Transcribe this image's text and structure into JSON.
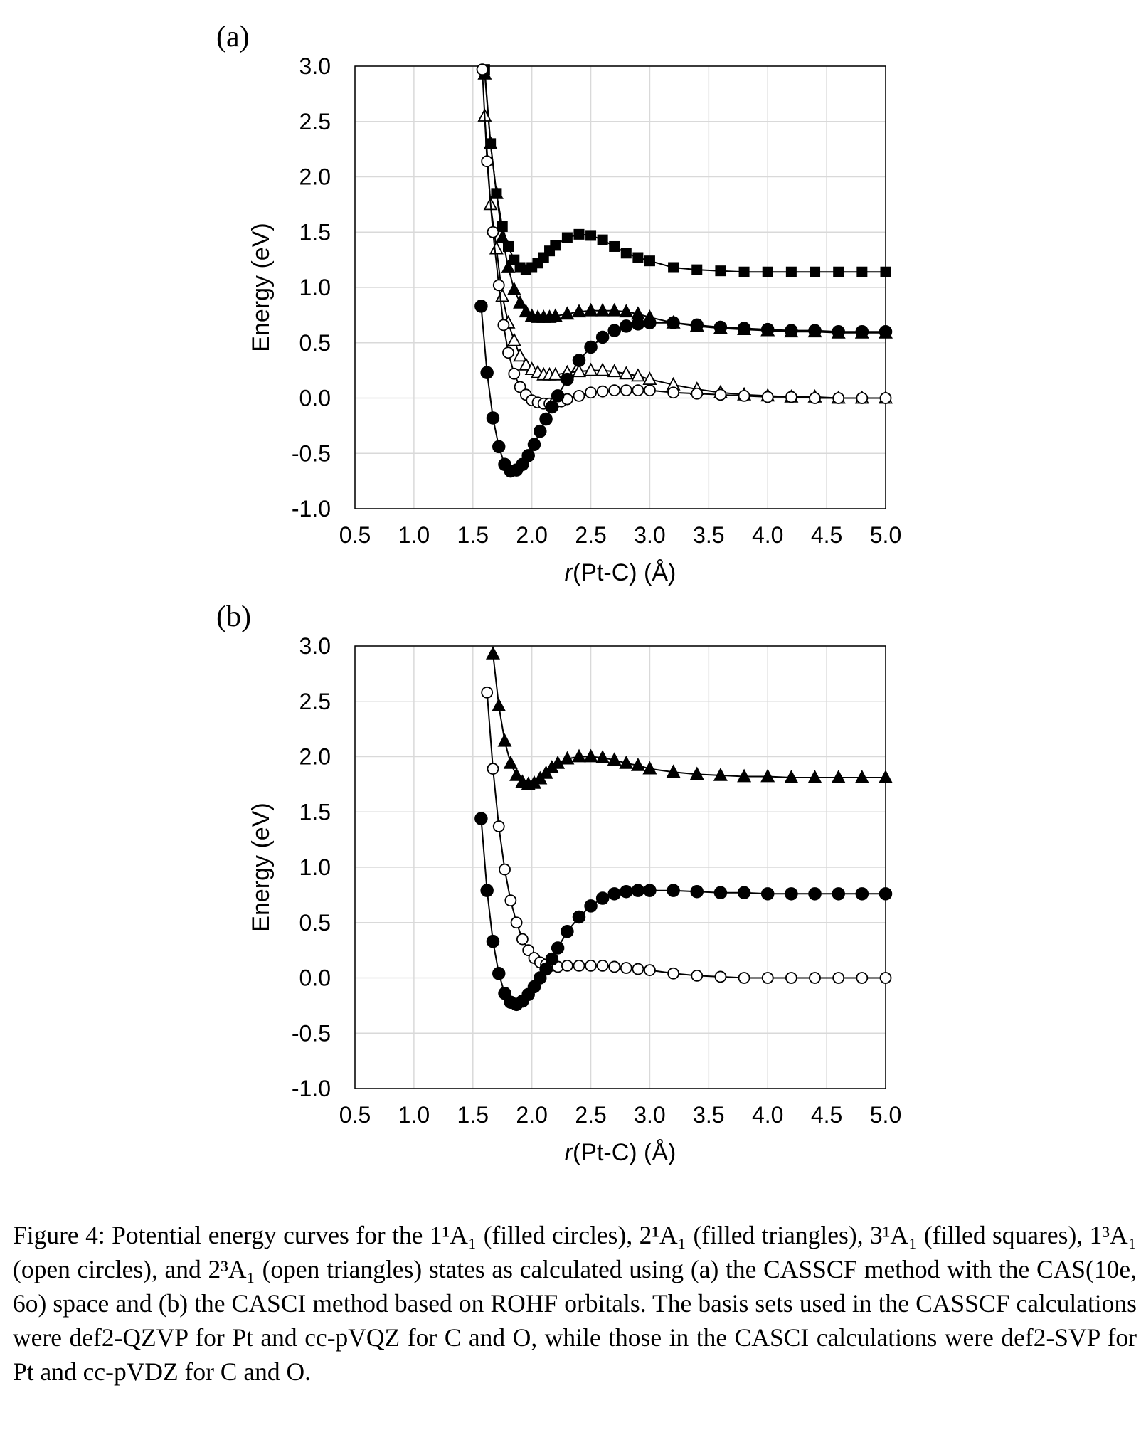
{
  "chart_data": [
    {
      "panel_label": "(a)",
      "type": "scatter",
      "xlabel_prefix": "r",
      "xlabel_rest": "(Pt-C) (Å)",
      "ylabel": "Energy (eV)",
      "xlim": [
        0.5,
        5.0
      ],
      "ylim": [
        -1.0,
        3.0
      ],
      "xticks": [
        "0.5",
        "1.0",
        "1.5",
        "2.0",
        "2.5",
        "3.0",
        "3.5",
        "4.0",
        "4.5",
        "5.0"
      ],
      "yticks": [
        "3.0",
        "2.5",
        "2.0",
        "1.5",
        "1.0",
        "0.5",
        "0.0",
        "-0.5",
        "-1.0"
      ],
      "grid": true,
      "series": [
        {
          "marker": "filled-square",
          "x": [
            1.6,
            1.65,
            1.7,
            1.75,
            1.8,
            1.85,
            1.9,
            1.95,
            2.0,
            2.05,
            2.1,
            2.15,
            2.2,
            2.3,
            2.4,
            2.5,
            2.6,
            2.7,
            2.8,
            2.9,
            3.0,
            3.2,
            3.4,
            3.6,
            3.8,
            4.0,
            4.2,
            4.4,
            4.6,
            4.8,
            5.0
          ],
          "y": [
            2.97,
            2.3,
            1.85,
            1.55,
            1.37,
            1.25,
            1.18,
            1.16,
            1.18,
            1.22,
            1.27,
            1.33,
            1.38,
            1.45,
            1.48,
            1.47,
            1.43,
            1.37,
            1.31,
            1.27,
            1.24,
            1.18,
            1.16,
            1.15,
            1.14,
            1.14,
            1.14,
            1.14,
            1.14,
            1.14,
            1.14
          ]
        },
        {
          "marker": "filled-triangle",
          "x": [
            1.6,
            1.65,
            1.7,
            1.75,
            1.8,
            1.85,
            1.9,
            1.95,
            2.0,
            2.05,
            2.1,
            2.15,
            2.2,
            2.3,
            2.4,
            2.5,
            2.6,
            2.7,
            2.8,
            2.9,
            3.0,
            3.2,
            3.4,
            3.6,
            3.8,
            4.0,
            4.2,
            4.4,
            4.6,
            4.8,
            5.0
          ],
          "y": [
            2.93,
            2.3,
            1.85,
            1.45,
            1.18,
            0.98,
            0.86,
            0.78,
            0.74,
            0.73,
            0.73,
            0.73,
            0.74,
            0.76,
            0.78,
            0.79,
            0.79,
            0.79,
            0.78,
            0.76,
            0.73,
            0.68,
            0.65,
            0.63,
            0.62,
            0.61,
            0.6,
            0.6,
            0.59,
            0.59,
            0.59
          ]
        },
        {
          "marker": "open-triangle",
          "x": [
            1.6,
            1.65,
            1.7,
            1.75,
            1.8,
            1.85,
            1.9,
            1.95,
            2.0,
            2.05,
            2.1,
            2.15,
            2.2,
            2.3,
            2.4,
            2.5,
            2.6,
            2.7,
            2.8,
            2.9,
            3.0,
            3.2,
            3.4,
            3.6,
            3.8,
            4.0,
            4.2,
            4.4,
            4.6,
            4.8,
            5.0
          ],
          "y": [
            2.55,
            1.75,
            1.35,
            0.92,
            0.68,
            0.52,
            0.38,
            0.3,
            0.26,
            0.23,
            0.21,
            0.21,
            0.21,
            0.23,
            0.24,
            0.25,
            0.25,
            0.24,
            0.22,
            0.2,
            0.17,
            0.12,
            0.08,
            0.05,
            0.03,
            0.02,
            0.01,
            0.01,
            0.0,
            0.0,
            0.0
          ]
        },
        {
          "marker": "open-circle",
          "x": [
            1.58,
            1.62,
            1.67,
            1.72,
            1.76,
            1.8,
            1.85,
            1.9,
            1.95,
            2.0,
            2.05,
            2.1,
            2.15,
            2.2,
            2.25,
            2.3,
            2.4,
            2.5,
            2.6,
            2.7,
            2.8,
            2.9,
            3.0,
            3.2,
            3.4,
            3.6,
            3.8,
            4.0,
            4.2,
            4.4,
            4.6,
            4.8,
            5.0
          ],
          "y": [
            2.97,
            2.14,
            1.5,
            1.02,
            0.66,
            0.41,
            0.22,
            0.1,
            0.03,
            -0.02,
            -0.04,
            -0.05,
            -0.05,
            -0.04,
            -0.03,
            -0.01,
            0.02,
            0.05,
            0.06,
            0.07,
            0.07,
            0.07,
            0.07,
            0.05,
            0.04,
            0.03,
            0.02,
            0.01,
            0.01,
            0.0,
            0.0,
            0.0,
            0.0
          ]
        },
        {
          "marker": "filled-circle",
          "x": [
            1.57,
            1.62,
            1.67,
            1.72,
            1.77,
            1.82,
            1.87,
            1.92,
            1.97,
            2.02,
            2.07,
            2.12,
            2.17,
            2.22,
            2.3,
            2.4,
            2.5,
            2.6,
            2.7,
            2.8,
            2.9,
            3.0,
            3.2,
            3.4,
            3.6,
            3.8,
            4.0,
            4.2,
            4.4,
            4.6,
            4.8,
            5.0
          ],
          "y": [
            0.83,
            0.23,
            -0.18,
            -0.44,
            -0.6,
            -0.66,
            -0.65,
            -0.6,
            -0.52,
            -0.42,
            -0.3,
            -0.19,
            -0.08,
            0.02,
            0.17,
            0.34,
            0.46,
            0.55,
            0.61,
            0.65,
            0.67,
            0.68,
            0.68,
            0.66,
            0.64,
            0.63,
            0.62,
            0.61,
            0.61,
            0.6,
            0.6,
            0.6
          ]
        }
      ]
    },
    {
      "panel_label": "(b)",
      "type": "scatter",
      "xlabel_prefix": "r",
      "xlabel_rest": "(Pt-C) (Å)",
      "ylabel": "Energy (eV)",
      "xlim": [
        0.5,
        5.0
      ],
      "ylim": [
        -1.0,
        3.0
      ],
      "xticks": [
        "0.5",
        "1.0",
        "1.5",
        "2.0",
        "2.5",
        "3.0",
        "3.5",
        "4.0",
        "4.5",
        "5.0"
      ],
      "yticks": [
        "3.0",
        "2.5",
        "2.0",
        "1.5",
        "1.0",
        "0.5",
        "0.0",
        "-0.5",
        "-1.0"
      ],
      "grid": true,
      "series": [
        {
          "marker": "filled-triangle",
          "x": [
            1.67,
            1.72,
            1.77,
            1.82,
            1.87,
            1.92,
            1.97,
            2.02,
            2.07,
            2.12,
            2.17,
            2.22,
            2.3,
            2.4,
            2.5,
            2.6,
            2.7,
            2.8,
            2.9,
            3.0,
            3.2,
            3.4,
            3.6,
            3.8,
            4.0,
            4.2,
            4.4,
            4.6,
            4.8,
            5.0
          ],
          "y": [
            2.93,
            2.46,
            2.14,
            1.94,
            1.83,
            1.77,
            1.75,
            1.76,
            1.8,
            1.85,
            1.9,
            1.94,
            1.98,
            2.0,
            2.0,
            1.99,
            1.97,
            1.94,
            1.92,
            1.89,
            1.86,
            1.84,
            1.83,
            1.82,
            1.82,
            1.81,
            1.81,
            1.81,
            1.81,
            1.81
          ]
        },
        {
          "marker": "open-circle",
          "x": [
            1.62,
            1.67,
            1.72,
            1.77,
            1.82,
            1.87,
            1.92,
            1.97,
            2.02,
            2.07,
            2.12,
            2.17,
            2.22,
            2.3,
            2.4,
            2.5,
            2.6,
            2.7,
            2.8,
            2.9,
            3.0,
            3.2,
            3.4,
            3.6,
            3.8,
            4.0,
            4.2,
            4.4,
            4.6,
            4.8,
            5.0
          ],
          "y": [
            2.58,
            1.89,
            1.37,
            0.98,
            0.7,
            0.5,
            0.35,
            0.25,
            0.18,
            0.14,
            0.12,
            0.11,
            0.1,
            0.11,
            0.11,
            0.11,
            0.11,
            0.1,
            0.09,
            0.08,
            0.07,
            0.04,
            0.02,
            0.01,
            0.0,
            0.0,
            0.0,
            0.0,
            0.0,
            0.0,
            0.0
          ]
        },
        {
          "marker": "filled-circle",
          "x": [
            1.57,
            1.62,
            1.67,
            1.72,
            1.77,
            1.82,
            1.87,
            1.92,
            1.97,
            2.02,
            2.07,
            2.12,
            2.17,
            2.22,
            2.3,
            2.4,
            2.5,
            2.6,
            2.7,
            2.8,
            2.9,
            3.0,
            3.2,
            3.4,
            3.6,
            3.8,
            4.0,
            4.2,
            4.4,
            4.6,
            4.8,
            5.0
          ],
          "y": [
            1.44,
            0.79,
            0.33,
            0.04,
            -0.14,
            -0.22,
            -0.24,
            -0.21,
            -0.15,
            -0.08,
            0.0,
            0.08,
            0.17,
            0.27,
            0.42,
            0.55,
            0.65,
            0.72,
            0.76,
            0.78,
            0.79,
            0.79,
            0.79,
            0.78,
            0.77,
            0.77,
            0.76,
            0.76,
            0.76,
            0.76,
            0.76,
            0.76
          ]
        }
      ]
    }
  ],
  "caption": "Figure 4: Potential energy curves for the 1¹A₁ (filled circles), 2¹A₁ (filled triangles), 3¹A₁ (filled squares), 1³A₁ (open circles), and 2³A₁ (open triangles) states as calculated using (a) the CASSCF method with the CAS(10e, 6o) space and (b) the CASCI method based on ROHF orbitals. The basis sets used in the CASSCF calculations were def2-QZVP for Pt and cc-pVQZ for C and O, while those in the CASCI calculations were def2-SVP for Pt and cc-pVDZ for C and O."
}
